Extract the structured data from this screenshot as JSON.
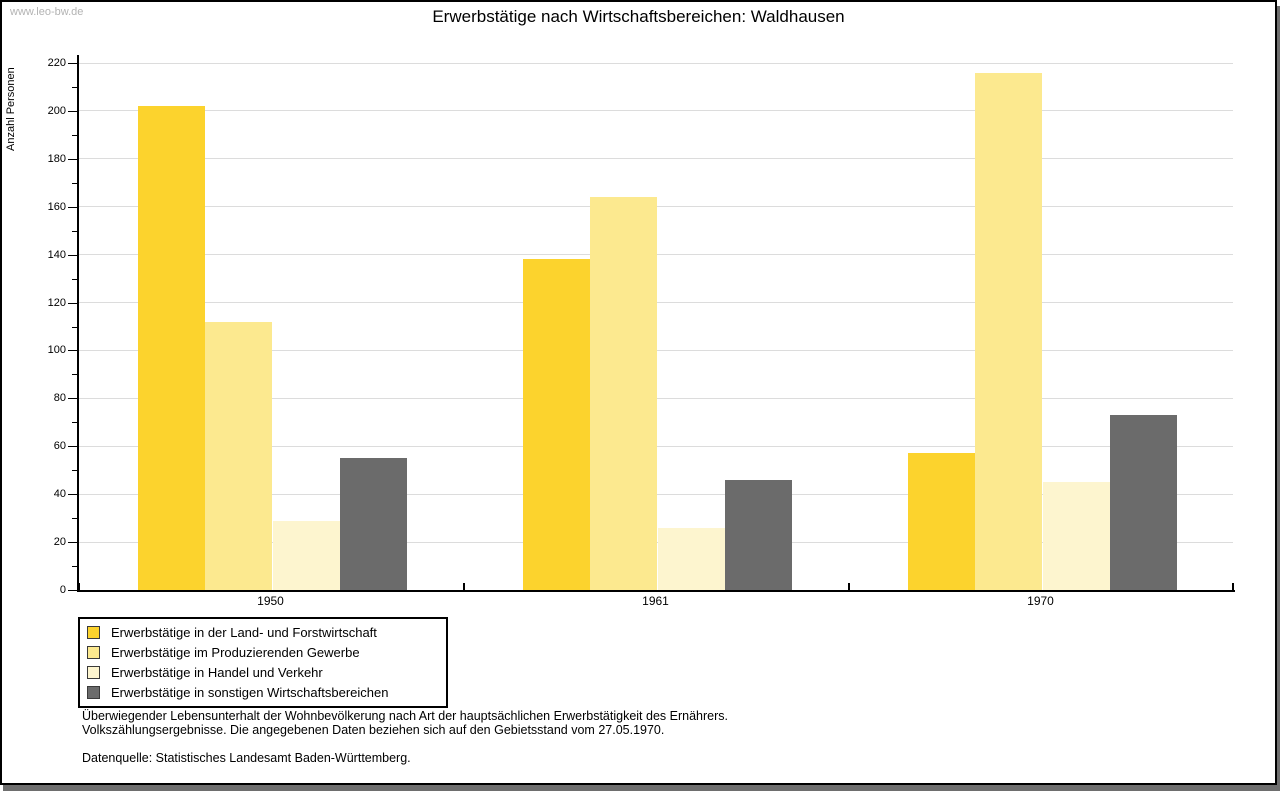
{
  "watermark": "www.leo-bw.de",
  "chart_data": {
    "type": "bar",
    "title": "Erwerbstätige nach Wirtschaftsbereichen: Waldhausen",
    "ylabel": "Anzahl Personen",
    "xlabel": "",
    "categories": [
      "1950",
      "1961",
      "1970"
    ],
    "series": [
      {
        "name": "Erwerbstätige in der Land- und Forstwirtschaft",
        "color": "#fcd32d",
        "values": [
          202,
          138,
          57
        ]
      },
      {
        "name": "Erwerbstätige im Produzierenden Gewerbe",
        "color": "#fce98f",
        "values": [
          112,
          164,
          216
        ]
      },
      {
        "name": "Erwerbstätige in Handel und Verkehr",
        "color": "#fdf5cf",
        "values": [
          29,
          26,
          45
        ]
      },
      {
        "name": "Erwerbstätige in sonstigen Wirtschaftsbereichen",
        "color": "#6b6b6b",
        "values": [
          55,
          46,
          73
        ]
      }
    ],
    "ylim": [
      0,
      220
    ],
    "ytick_step": 20,
    "yminor_step": 10,
    "grid": "major-horizontal",
    "legend_position": "bottom-left"
  },
  "footer": {
    "line1": "Überwiegender Lebensunterhalt der Wohnbevölkerung nach Art der hauptsächlichen Erwerbstätigkeit des Ernährers.",
    "line2": "Volkszählungsergebnisse. Die angegebenen Daten beziehen sich auf den Gebietsstand vom 27.05.1970.",
    "line3": "Datenquelle: Statistisches Landesamt Baden-Württemberg."
  }
}
